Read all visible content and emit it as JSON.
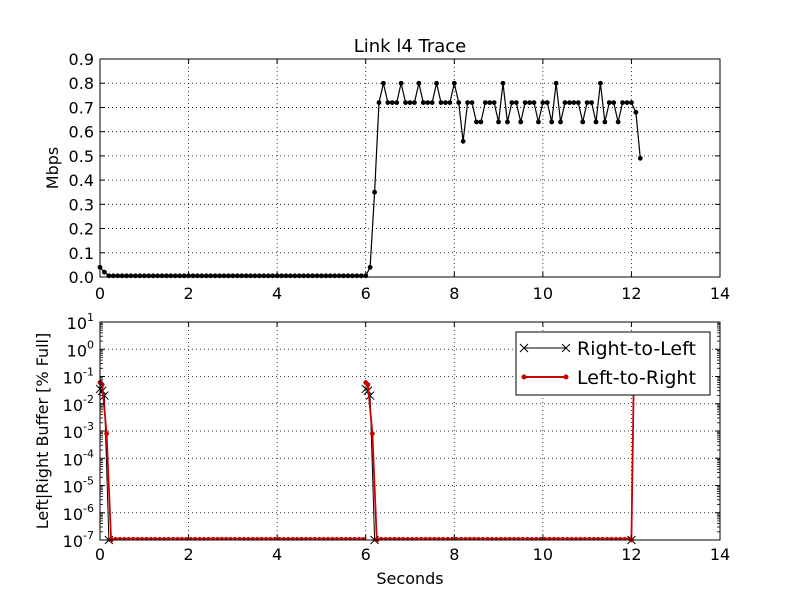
{
  "chart_data": [
    {
      "type": "line",
      "title": "Link l4 Trace",
      "xlabel": "",
      "ylabel": "Mbps",
      "xlim": [
        0,
        14
      ],
      "ylim": [
        0,
        0.9
      ],
      "xticks": [
        "0",
        "2",
        "4",
        "6",
        "8",
        "10",
        "12",
        "14"
      ],
      "yticks": [
        "0.0",
        "0.1",
        "0.2",
        "0.3",
        "0.4",
        "0.5",
        "0.6",
        "0.7",
        "0.8",
        "0.9"
      ],
      "grid": true,
      "series": [
        {
          "color": "#000000",
          "marker": "dot",
          "x": [
            0.0,
            0.1,
            0.2,
            0.3,
            0.4,
            0.5,
            0.6,
            0.7,
            0.8,
            0.9,
            1.0,
            1.1,
            1.2,
            1.3,
            1.4,
            1.5,
            1.6,
            1.7,
            1.8,
            1.9,
            2.0,
            2.1,
            2.2,
            2.3,
            2.4,
            2.5,
            2.6,
            2.7,
            2.8,
            2.9,
            3.0,
            3.1,
            3.2,
            3.3,
            3.4,
            3.5,
            3.6,
            3.7,
            3.8,
            3.9,
            4.0,
            4.1,
            4.2,
            4.3,
            4.4,
            4.5,
            4.6,
            4.7,
            4.8,
            4.9,
            5.0,
            5.1,
            5.2,
            5.3,
            5.4,
            5.5,
            5.6,
            5.7,
            5.8,
            5.9,
            6.0,
            6.1,
            6.2,
            6.3,
            6.4,
            6.5,
            6.6,
            6.7,
            6.8,
            6.9,
            7.0,
            7.1,
            7.2,
            7.3,
            7.4,
            7.5,
            7.6,
            7.7,
            7.8,
            7.9,
            8.0,
            8.1,
            8.2,
            8.3,
            8.4,
            8.5,
            8.6,
            8.7,
            8.8,
            8.9,
            9.0,
            9.1,
            9.2,
            9.3,
            9.4,
            9.5,
            9.6,
            9.7,
            9.8,
            9.9,
            10.0,
            10.1,
            10.2,
            10.3,
            10.4,
            10.5,
            10.6,
            10.7,
            10.8,
            10.9,
            11.0,
            11.1,
            11.2,
            11.3,
            11.4,
            11.5,
            11.6,
            11.7,
            11.8,
            11.9,
            12.0,
            12.1,
            12.2
          ],
          "y": [
            0.04,
            0.02,
            0.005,
            0.005,
            0.005,
            0.005,
            0.005,
            0.005,
            0.005,
            0.005,
            0.005,
            0.005,
            0.005,
            0.005,
            0.005,
            0.005,
            0.005,
            0.005,
            0.005,
            0.005,
            0.005,
            0.005,
            0.005,
            0.005,
            0.005,
            0.005,
            0.005,
            0.005,
            0.005,
            0.005,
            0.005,
            0.005,
            0.005,
            0.005,
            0.005,
            0.005,
            0.005,
            0.005,
            0.005,
            0.005,
            0.005,
            0.005,
            0.005,
            0.005,
            0.005,
            0.005,
            0.005,
            0.005,
            0.005,
            0.005,
            0.005,
            0.005,
            0.005,
            0.005,
            0.005,
            0.005,
            0.005,
            0.005,
            0.005,
            0.005,
            0.005,
            0.04,
            0.35,
            0.72,
            0.8,
            0.72,
            0.72,
            0.72,
            0.8,
            0.72,
            0.72,
            0.72,
            0.8,
            0.72,
            0.72,
            0.72,
            0.8,
            0.72,
            0.72,
            0.72,
            0.8,
            0.72,
            0.56,
            0.72,
            0.72,
            0.64,
            0.64,
            0.72,
            0.72,
            0.72,
            0.64,
            0.8,
            0.64,
            0.72,
            0.72,
            0.64,
            0.72,
            0.72,
            0.72,
            0.64,
            0.72,
            0.72,
            0.64,
            0.8,
            0.64,
            0.72,
            0.72,
            0.72,
            0.72,
            0.64,
            0.72,
            0.72,
            0.64,
            0.8,
            0.64,
            0.72,
            0.72,
            0.64,
            0.72,
            0.72,
            0.72,
            0.68,
            0.49
          ]
        }
      ]
    },
    {
      "type": "line",
      "title": "",
      "xlabel": "Seconds",
      "ylabel": "Left|Right Buffer [% Full]",
      "yscale": "log",
      "xlim": [
        0,
        14
      ],
      "ylim": [
        1e-07,
        10
      ],
      "xticks": [
        "0",
        "2",
        "4",
        "6",
        "8",
        "10",
        "12",
        "14"
      ],
      "ytick_exponents": [
        "-7",
        "-6",
        "-5",
        "-4",
        "-3",
        "-2",
        "-1",
        "0",
        "1"
      ],
      "ytick_base": "10",
      "grid": true,
      "legend": "top-right",
      "series": [
        {
          "name": "Right-to-Left",
          "color": "#000000",
          "marker": "x",
          "x": [
            0.0,
            0.05,
            0.1,
            0.2,
            6.0,
            6.05,
            6.1,
            6.2,
            12.0,
            12.05
          ],
          "y": [
            0.035,
            0.03,
            0.02,
            1e-07,
            0.035,
            0.03,
            0.02,
            1e-07,
            1e-07,
            0.03
          ]
        },
        {
          "name": "Left-to-Right",
          "color": "#cc0000",
          "marker": "dot",
          "x": [
            0.0,
            0.05,
            0.15,
            0.25,
            6.0,
            6.05,
            6.15,
            6.25,
            12.0,
            12.05
          ],
          "y": [
            0.06,
            0.05,
            0.0008,
            1e-07,
            0.06,
            0.05,
            0.0008,
            1e-07,
            1e-07,
            0.03
          ]
        }
      ]
    }
  ]
}
